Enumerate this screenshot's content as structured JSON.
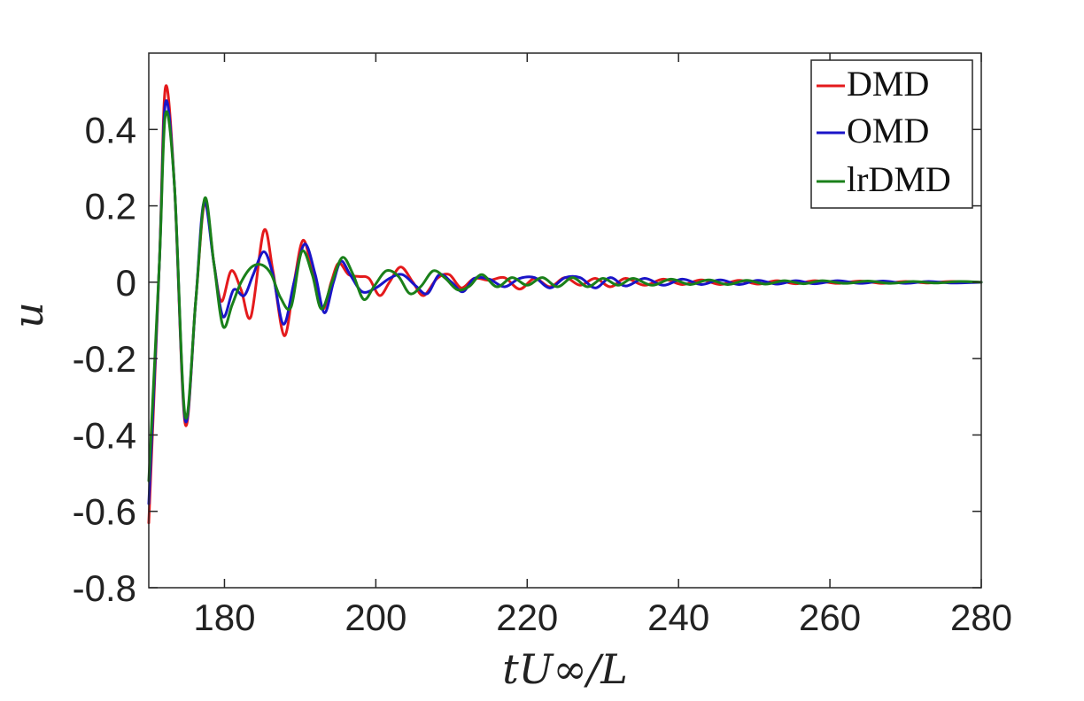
{
  "chart_data": {
    "type": "line",
    "title": "",
    "xlabel": "tU∞/L",
    "ylabel": "u",
    "xlim": [
      170,
      280
    ],
    "ylim": [
      -0.8,
      0.6
    ],
    "x_ticks": [
      {
        "value": 180,
        "label": "180"
      },
      {
        "value": 200,
        "label": "200"
      },
      {
        "value": 220,
        "label": "220"
      },
      {
        "value": 240,
        "label": "240"
      },
      {
        "value": 260,
        "label": "260"
      },
      {
        "value": 280,
        "label": "280"
      }
    ],
    "y_ticks": [
      {
        "value": 0.4,
        "label": "0.4"
      },
      {
        "value": 0.2,
        "label": "0.2"
      },
      {
        "value": 0,
        "label": "0"
      },
      {
        "value": -0.2,
        "label": "-0.2"
      },
      {
        "value": -0.4,
        "label": "-0.4"
      },
      {
        "value": -0.6,
        "label": "-0.6"
      },
      {
        "value": -0.8,
        "label": "-0.8"
      }
    ],
    "grid": false,
    "legend_position": "top-right",
    "series": [
      {
        "name": "DMD",
        "color": "#e41a1c",
        "x": [
          170,
          171.4,
          172.2,
          173.4,
          174.8,
          176.2,
          177.4,
          178.6,
          179.6,
          180.9,
          182.2,
          183.5,
          185.2,
          186.4,
          187.9,
          189.2,
          190.4,
          191.7,
          193.0,
          194.1,
          195.1,
          196.4,
          197.8,
          199.1,
          200.5,
          201.8,
          203.3,
          204.9,
          206.3,
          208.1,
          209.7,
          211.3,
          213.0,
          215.0,
          217.0,
          219.0,
          221.0,
          223.0,
          225.0,
          227.0,
          229.0,
          231.0,
          233.0,
          235.5,
          238.0,
          240.5,
          243.0,
          245.5,
          248.0,
          250.5,
          253.0,
          255.5,
          258.0,
          261.0,
          264.0,
          267.0,
          270.0,
          273.0,
          276.0,
          280.0
        ],
        "y": [
          -0.63,
          0.05,
          0.51,
          0.25,
          -0.37,
          -0.05,
          0.21,
          0.05,
          -0.05,
          0.03,
          -0.02,
          -0.09,
          0.135,
          0.03,
          -0.14,
          0.0,
          0.11,
          0.02,
          -0.07,
          0.0,
          0.05,
          0.02,
          0.015,
          0.01,
          -0.035,
          0.0,
          0.04,
          0.0,
          -0.035,
          0.01,
          0.02,
          -0.015,
          0.01,
          0.005,
          0.012,
          -0.018,
          0.01,
          -0.012,
          0.012,
          -0.008,
          0.01,
          -0.012,
          0.01,
          -0.008,
          0.008,
          -0.006,
          0.006,
          -0.006,
          0.005,
          -0.005,
          0.004,
          -0.004,
          0.004,
          -0.003,
          0.003,
          -0.003,
          0.002,
          -0.002,
          0.002,
          0.0
        ]
      },
      {
        "name": "OMD",
        "color": "#1a14c8",
        "x": [
          170,
          171.4,
          172.2,
          173.4,
          174.8,
          176.2,
          177.3,
          178.6,
          179.8,
          181.2,
          182.6,
          183.8,
          185.2,
          186.4,
          187.8,
          189.2,
          190.6,
          192.0,
          193.2,
          194.4,
          195.4,
          196.6,
          198.2,
          200.0,
          201.8,
          203.5,
          205.3,
          206.8,
          208.4,
          210.0,
          211.5,
          213.0,
          215.0,
          217.0,
          219.0,
          221.0,
          223.0,
          225.0,
          227.0,
          229.0,
          231.0,
          233.0,
          235.5,
          238.0,
          240.5,
          243.0,
          245.5,
          248.0,
          250.5,
          253.0,
          255.5,
          258.0,
          261.0,
          264.0,
          267.0,
          270.0,
          273.0,
          276.0,
          280.0
        ],
        "y": [
          -0.58,
          0.05,
          0.47,
          0.25,
          -0.36,
          -0.05,
          0.21,
          0.05,
          -0.09,
          -0.02,
          -0.035,
          0.02,
          0.08,
          0.02,
          -0.11,
          0.0,
          0.1,
          0.02,
          -0.08,
          0.0,
          0.055,
          0.02,
          -0.025,
          -0.015,
          0.01,
          0.02,
          -0.01,
          -0.03,
          0.02,
          0.0,
          -0.025,
          0.01,
          0.008,
          -0.012,
          0.01,
          0.012,
          -0.015,
          0.012,
          0.012,
          -0.015,
          0.012,
          -0.01,
          0.01,
          -0.008,
          0.008,
          -0.006,
          0.006,
          -0.006,
          0.005,
          -0.005,
          0.004,
          -0.004,
          0.004,
          -0.003,
          0.003,
          -0.003,
          0.002,
          -0.002,
          0.0
        ]
      },
      {
        "name": "lrDMD",
        "color": "#1a801a",
        "x": [
          170,
          171.4,
          172.2,
          173.4,
          174.8,
          176.2,
          177.4,
          178.6,
          179.8,
          181.0,
          182.2,
          183.6,
          185.0,
          186.2,
          187.4,
          188.8,
          190.2,
          191.6,
          192.8,
          194.2,
          195.6,
          197.0,
          198.4,
          199.8,
          201.4,
          203.0,
          204.5,
          206.0,
          207.6,
          209.2,
          210.8,
          212.4,
          214.0,
          216.0,
          218.0,
          220.0,
          222.0,
          224.0,
          226.0,
          228.0,
          230.0,
          232.0,
          234.0,
          236.5,
          239.0,
          241.5,
          244.0,
          246.5,
          249.0,
          251.5,
          254.0,
          256.5,
          259.0,
          262.0,
          265.0,
          268.0,
          271.0,
          274.0,
          277.0,
          280.0
        ],
        "y": [
          -0.52,
          0.05,
          0.44,
          0.25,
          -0.35,
          -0.05,
          0.22,
          0.05,
          -0.115,
          -0.06,
          0.0,
          0.04,
          0.045,
          0.02,
          -0.04,
          -0.065,
          0.08,
          0.02,
          -0.07,
          0.0,
          0.065,
          0.02,
          -0.045,
          -0.01,
          0.03,
          0.015,
          -0.03,
          -0.01,
          0.03,
          0.01,
          -0.02,
          -0.01,
          0.02,
          -0.012,
          0.012,
          -0.008,
          0.012,
          -0.012,
          0.012,
          -0.012,
          0.01,
          -0.008,
          0.01,
          -0.008,
          0.008,
          -0.006,
          0.006,
          -0.006,
          0.005,
          -0.005,
          0.004,
          -0.004,
          0.004,
          -0.003,
          0.003,
          -0.003,
          0.002,
          -0.002,
          0.002,
          0.0
        ]
      }
    ]
  }
}
